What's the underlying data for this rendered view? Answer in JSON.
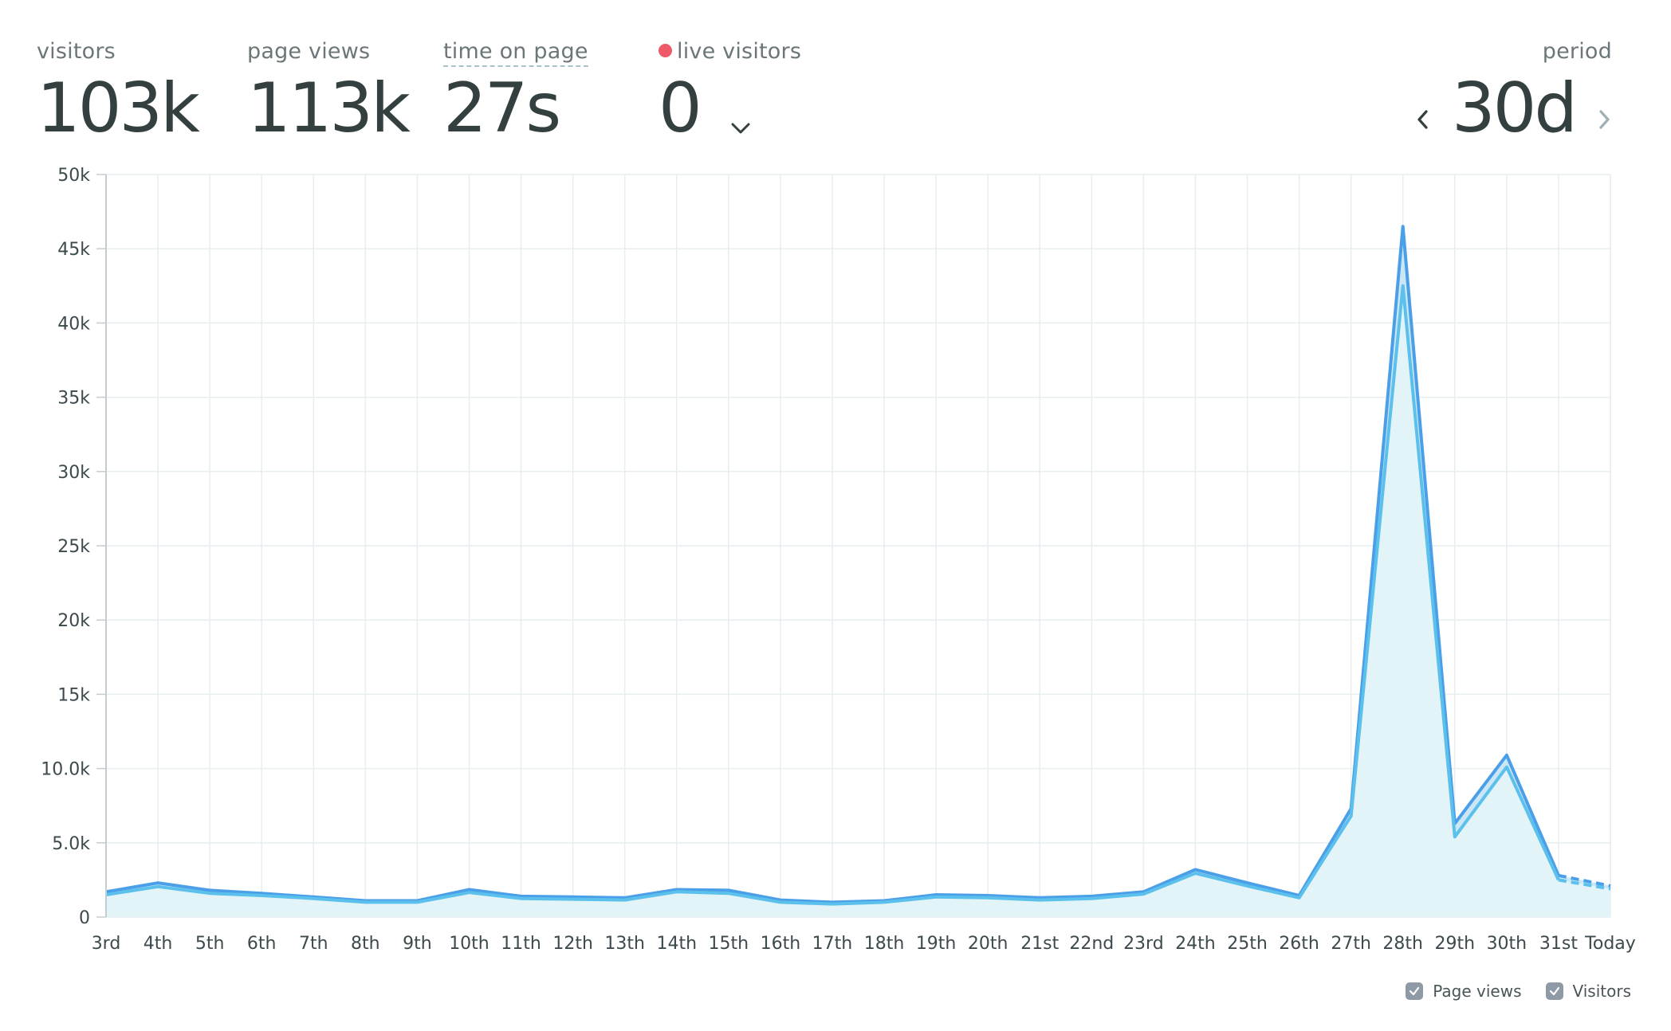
{
  "stats": {
    "visitors": {
      "label": "visitors",
      "value": "103k"
    },
    "page_views": {
      "label": "page views",
      "value": "113k"
    },
    "time_on_page": {
      "label": "time on page",
      "value": "27s"
    },
    "live_visitors": {
      "label": "live visitors",
      "value": "0"
    },
    "period": {
      "label": "period",
      "value": "30d"
    }
  },
  "colors": {
    "page_views_line": "#4a9fe8",
    "visitors_line": "#5bc0eb",
    "area_fill": "#e2f4f8",
    "live_dot": "#ee5a67",
    "grid": "#e6eef0"
  },
  "icons": {
    "live": "red-dot",
    "live_toggle": "chevron-down-icon",
    "prev": "chevron-left-icon",
    "next": "chevron-right-icon"
  },
  "legend": [
    {
      "label": "Page views",
      "checked": true
    },
    {
      "label": "Visitors",
      "checked": true
    }
  ],
  "chart_data": {
    "type": "area",
    "grid": true,
    "legend_position": "bottom-right",
    "ylim": [
      0,
      50000
    ],
    "y_ticks": [
      {
        "value": 0,
        "label": "0"
      },
      {
        "value": 5000,
        "label": "5.0k"
      },
      {
        "value": 10000,
        "label": "10.0k"
      },
      {
        "value": 15000,
        "label": "15k"
      },
      {
        "value": 20000,
        "label": "20k"
      },
      {
        "value": 25000,
        "label": "25k"
      },
      {
        "value": 30000,
        "label": "30k"
      },
      {
        "value": 35000,
        "label": "35k"
      },
      {
        "value": 40000,
        "label": "40k"
      },
      {
        "value": 45000,
        "label": "45k"
      },
      {
        "value": 50000,
        "label": "50k"
      }
    ],
    "categories": [
      "3rd",
      "4th",
      "5th",
      "6th",
      "7th",
      "8th",
      "9th",
      "10th",
      "11th",
      "12th",
      "13th",
      "14th",
      "15th",
      "16th",
      "17th",
      "18th",
      "19th",
      "20th",
      "21st",
      "22nd",
      "23rd",
      "24th",
      "25th",
      "26th",
      "27th",
      "28th",
      "29th",
      "30th",
      "31st",
      "Today"
    ],
    "series": [
      {
        "name": "Page views",
        "values": [
          1700,
          2300,
          1800,
          1600,
          1350,
          1100,
          1100,
          1850,
          1400,
          1350,
          1300,
          1850,
          1800,
          1150,
          1000,
          1100,
          1500,
          1450,
          1300,
          1400,
          1700,
          3200,
          2300,
          1450,
          7300,
          46500,
          6300,
          10900,
          2800,
          2100
        ]
      },
      {
        "name": "Visitors",
        "values": [
          1500,
          2050,
          1600,
          1450,
          1250,
          1000,
          1000,
          1650,
          1250,
          1200,
          1150,
          1700,
          1600,
          1000,
          880,
          1000,
          1350,
          1300,
          1150,
          1250,
          1550,
          2950,
          2100,
          1300,
          6800,
          42500,
          5400,
          10100,
          2500,
          1900
        ]
      }
    ]
  }
}
